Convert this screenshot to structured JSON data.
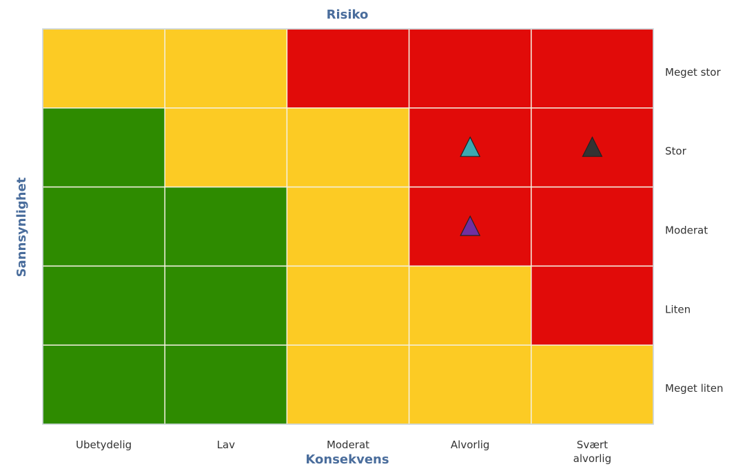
{
  "chart_data": {
    "type": "matrix",
    "title": "Risiko",
    "x_label": "Konsekvens",
    "y_label": "Sannsynlighet",
    "categories": [
      "Ubetydelig",
      "Lav",
      "Moderat",
      "Alvorlig",
      "Svært alvorlig"
    ],
    "rows": [
      "Meget stor",
      "Stor",
      "Moderat",
      "Liten",
      "Meget liten"
    ],
    "cells": [
      [
        "#fccb24",
        "#fccb24",
        "#e10b09",
        "#e10b09",
        "#e10b09"
      ],
      [
        "#2e8b00",
        "#fccb24",
        "#fccb24",
        "#e10b09",
        "#e10b09"
      ],
      [
        "#2e8b00",
        "#2e8b00",
        "#fccb24",
        "#e10b09",
        "#e10b09"
      ],
      [
        "#2e8b00",
        "#2e8b00",
        "#fccb24",
        "#fccb24",
        "#e10b09"
      ],
      [
        "#2e8b00",
        "#2e8b00",
        "#fccb24",
        "#fccb24",
        "#fccb24"
      ]
    ],
    "markers": [
      {
        "x": "Alvorlig",
        "y": "Stor",
        "color": "#3ba9b1"
      },
      {
        "x": "Svært alvorlig",
        "y": "Stor",
        "color": "#333333"
      },
      {
        "x": "Alvorlig",
        "y": "Moderat",
        "color": "#7030a0"
      }
    ]
  }
}
